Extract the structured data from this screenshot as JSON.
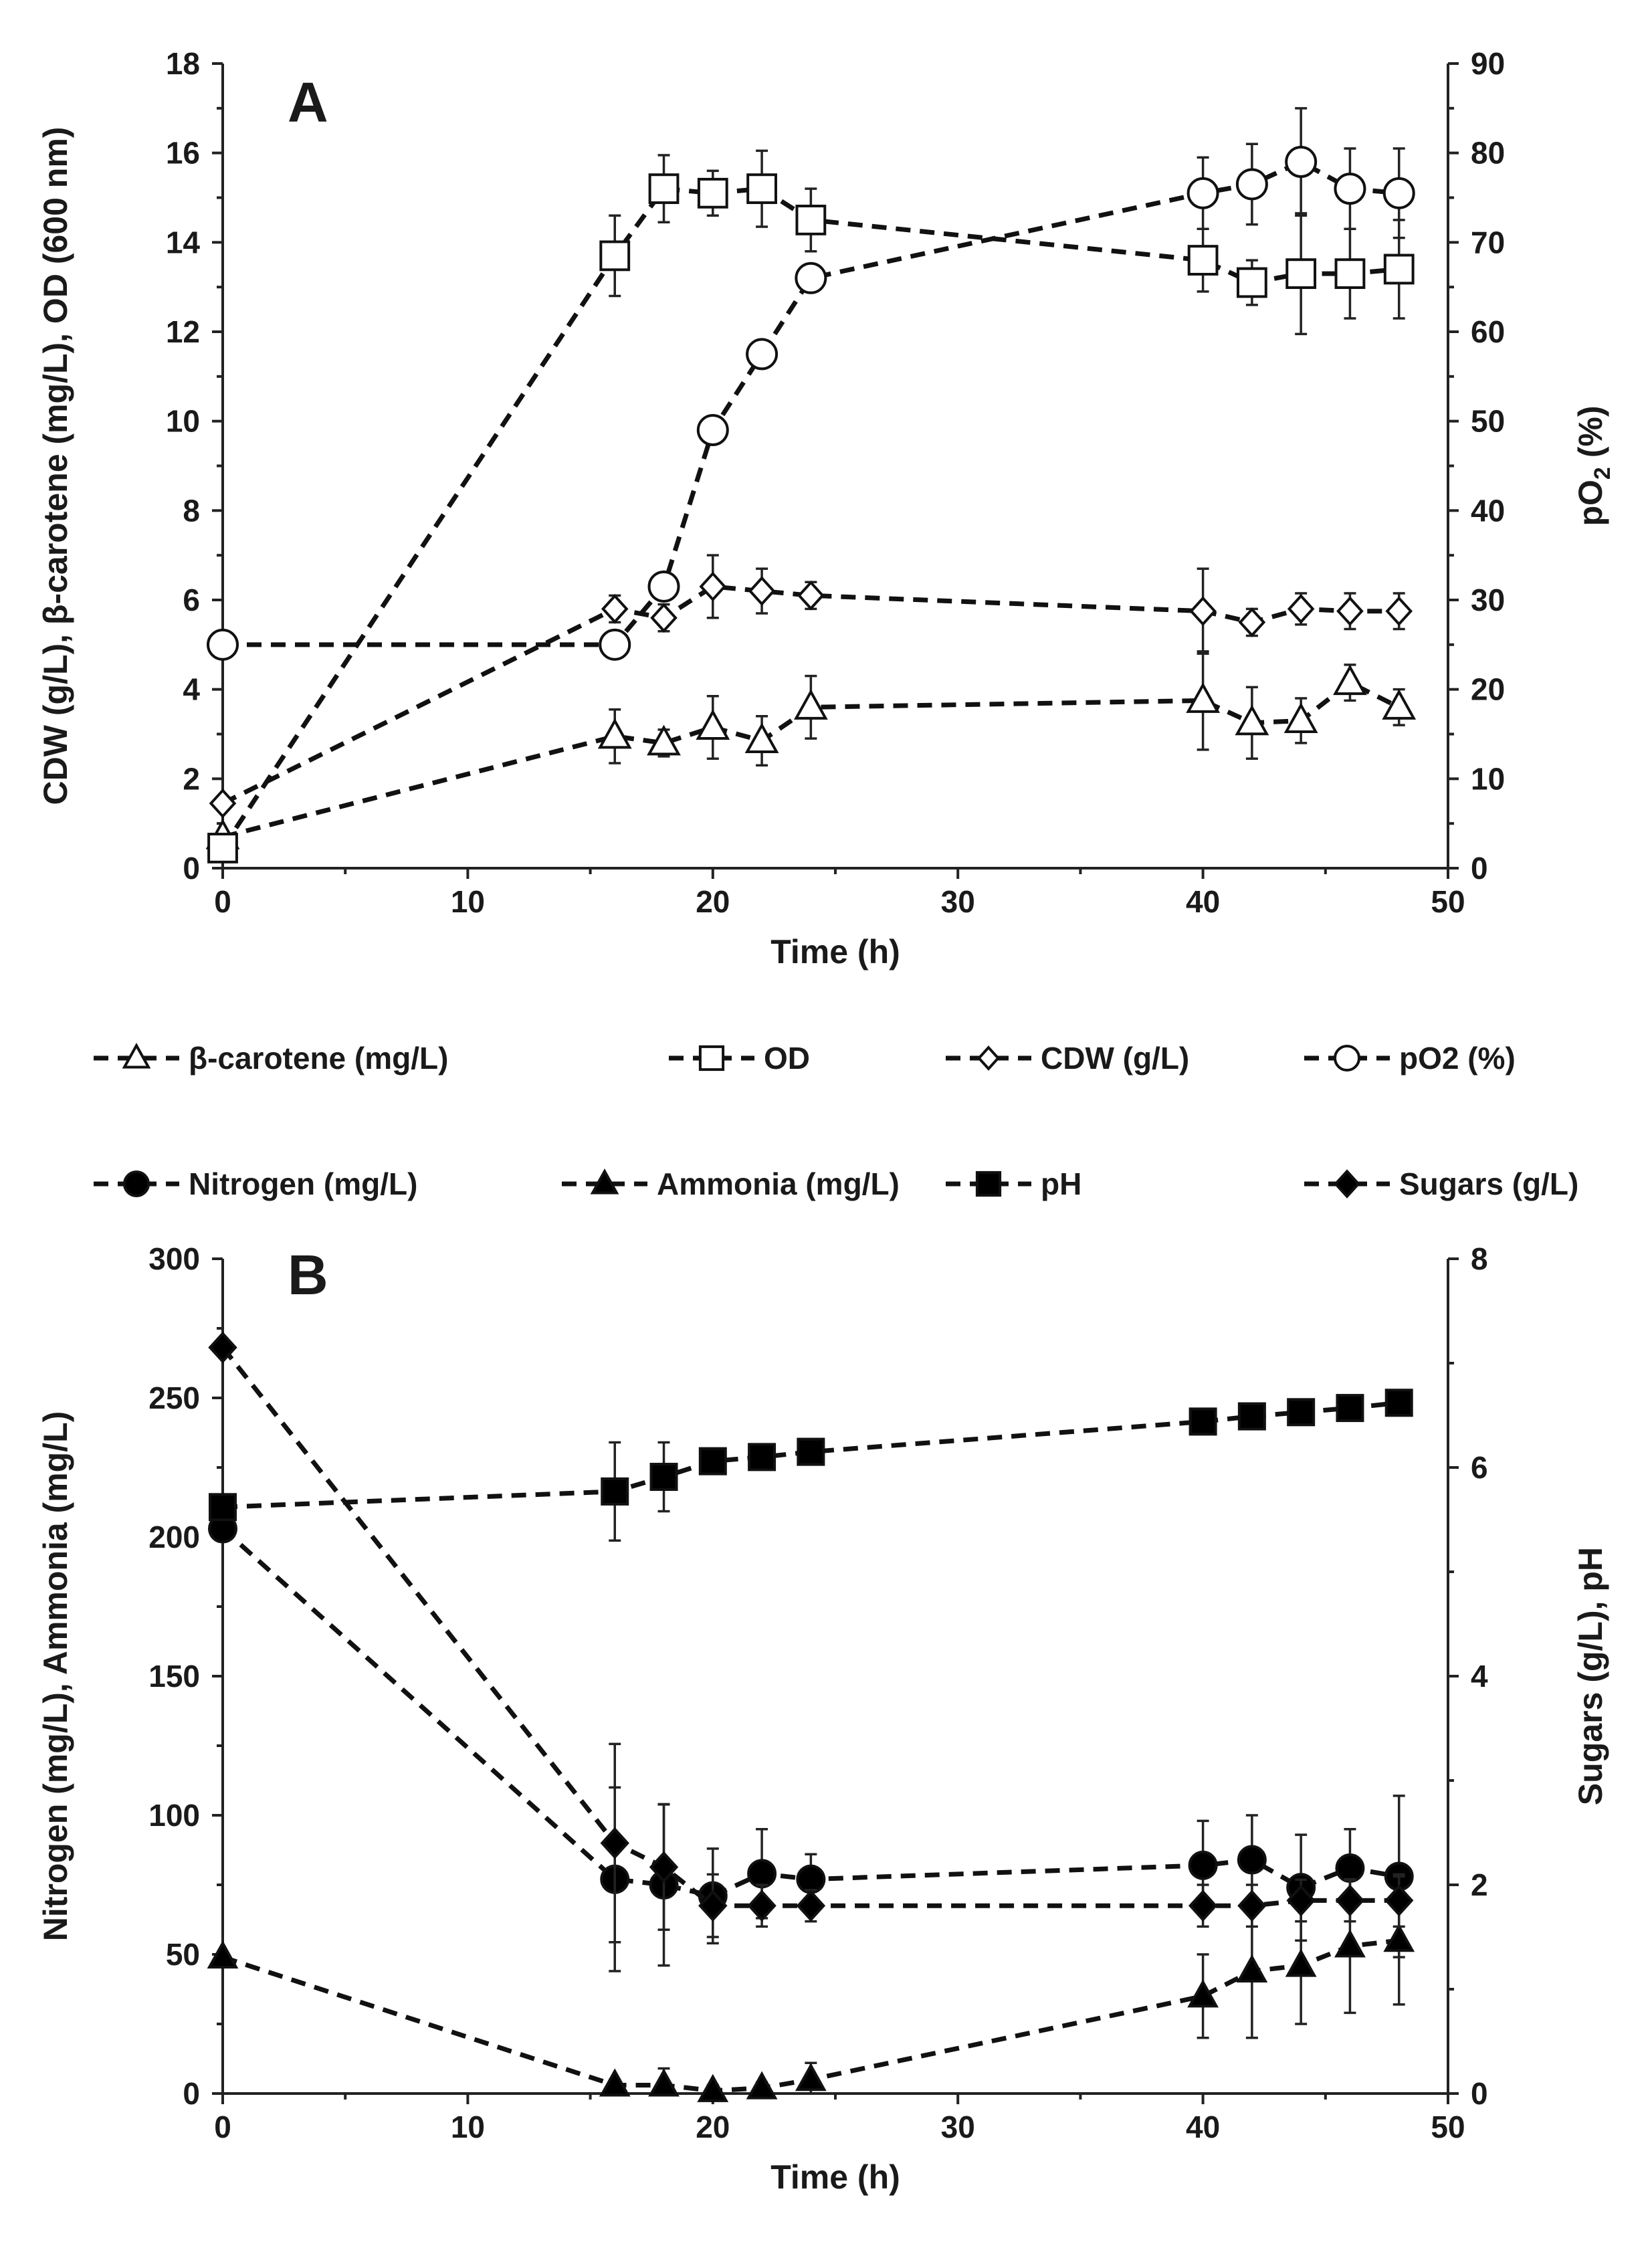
{
  "chart_data": [
    {
      "panel": "A",
      "type": "line",
      "xlabel": "Time (h)",
      "xlim": [
        0,
        50
      ],
      "xticks": [
        0,
        10,
        20,
        30,
        40,
        50
      ],
      "ylabel_left": "CDW (g/L), β-carotene (mg/L), OD (600 nm)",
      "ylim_left": [
        0,
        18
      ],
      "yticks_left": [
        0,
        2,
        4,
        6,
        8,
        10,
        12,
        14,
        16,
        18
      ],
      "ylabel_right_base": "pO",
      "ylabel_right_sub": "2",
      "ylabel_right_suffix": " (%)",
      "ylim_right": [
        0,
        90
      ],
      "yticks_right": [
        0,
        10,
        20,
        30,
        40,
        50,
        60,
        70,
        80,
        90
      ],
      "series": [
        {
          "name": "β-carotene (mg/L)",
          "axis": "left",
          "marker": "open-triangle",
          "x": [
            0,
            16,
            18,
            20,
            22,
            24,
            40,
            42,
            44,
            46,
            48
          ],
          "y": [
            0.7,
            2.95,
            2.8,
            3.15,
            2.85,
            3.6,
            3.75,
            3.25,
            3.3,
            4.15,
            3.6
          ],
          "err": [
            0,
            0.6,
            0.3,
            0.7,
            0.55,
            0.7,
            1.1,
            0.8,
            0.5,
            0.4,
            0.4
          ],
          "legend_label": "β-carotene (mg/L)"
        },
        {
          "name": "OD",
          "axis": "left",
          "marker": "open-square",
          "x": [
            0,
            16,
            18,
            20,
            22,
            24,
            40,
            42,
            44,
            46,
            48
          ],
          "y": [
            0.45,
            13.7,
            15.2,
            15.1,
            15.2,
            14.5,
            13.6,
            13.1,
            13.3,
            13.3,
            13.4
          ],
          "err": [
            0,
            0.9,
            0.75,
            0.5,
            0.85,
            0.7,
            0.7,
            0.5,
            1.35,
            1.0,
            1.1
          ],
          "legend_label": "OD"
        },
        {
          "name": "CDW (g/L)",
          "axis": "left",
          "marker": "open-diamond",
          "x": [
            0,
            16,
            18,
            20,
            22,
            24,
            40,
            42,
            44,
            46,
            48
          ],
          "y": [
            1.45,
            5.8,
            5.6,
            6.3,
            6.2,
            6.1,
            5.75,
            5.5,
            5.8,
            5.75,
            5.75
          ],
          "err": [
            0,
            0.3,
            0.3,
            0.7,
            0.5,
            0.3,
            0.95,
            0.3,
            0.35,
            0.4,
            0.4
          ],
          "legend_label": "CDW (g/L)"
        },
        {
          "name": "pO2 (%)",
          "axis": "right",
          "marker": "open-circle",
          "x": [
            0,
            16,
            18,
            20,
            22,
            24,
            40,
            42,
            44,
            46,
            48
          ],
          "y": [
            25,
            25,
            31.5,
            49,
            57.5,
            66,
            75.5,
            76.5,
            79,
            76,
            75.5
          ],
          "err": [
            0,
            0,
            0,
            0,
            0,
            0,
            4,
            4.5,
            6,
            4.5,
            5
          ],
          "legend_label": "pO2 (%)"
        }
      ]
    },
    {
      "panel": "B",
      "type": "line",
      "xlabel": "Time (h)",
      "xlim": [
        0,
        50
      ],
      "xticks": [
        0,
        10,
        20,
        30,
        40,
        50
      ],
      "ylabel_left": "Nitrogen (mg/L), Ammonia (mg/L)",
      "ylim_left": [
        0,
        300
      ],
      "yticks_left": [
        0,
        50,
        100,
        150,
        200,
        250,
        300
      ],
      "ylabel_right": "Sugars (g/L), pH",
      "ylim_right": [
        0,
        8
      ],
      "yticks_right": [
        0,
        2,
        4,
        6,
        8
      ],
      "series": [
        {
          "name": "Nitrogen (mg/L)",
          "axis": "left",
          "marker": "filled-circle",
          "x": [
            0,
            16,
            18,
            20,
            22,
            24,
            40,
            42,
            44,
            46,
            48
          ],
          "y": [
            203,
            77,
            75,
            71,
            79,
            77,
            82,
            84,
            74,
            81,
            78
          ],
          "err": [
            0,
            33,
            29,
            17,
            16,
            9,
            16,
            16,
            19,
            14,
            29
          ],
          "legend_label": "Nitrogen (mg/L)"
        },
        {
          "name": "Ammonia (mg/L)",
          "axis": "left",
          "marker": "filled-triangle",
          "x": [
            0,
            16,
            18,
            20,
            22,
            24,
            40,
            42,
            44,
            46,
            48
          ],
          "y": [
            49,
            3,
            3,
            1,
            2,
            5,
            35,
            44,
            46,
            53,
            55
          ],
          "err": [
            0,
            2,
            6,
            2,
            2,
            6,
            15,
            24,
            21,
            24,
            23
          ],
          "legend_label": "Ammonia (mg/L)"
        },
        {
          "name": "pH",
          "axis": "right",
          "marker": "filled-square",
          "x": [
            0,
            16,
            18,
            20,
            22,
            24,
            40,
            42,
            44,
            46,
            48
          ],
          "y": [
            5.62,
            5.77,
            5.91,
            6.06,
            6.1,
            6.15,
            6.44,
            6.49,
            6.53,
            6.57,
            6.62
          ],
          "err": [
            0,
            0.47,
            0.33,
            0.1,
            0.05,
            0.05,
            0.05,
            0.05,
            0.05,
            0.05,
            0.05
          ],
          "legend_label": "pH"
        },
        {
          "name": "Sugars (g/L)",
          "axis": "right",
          "marker": "filled-diamond",
          "x": [
            0,
            16,
            18,
            20,
            22,
            24,
            40,
            42,
            44,
            46,
            48
          ],
          "y": [
            7.15,
            2.4,
            2.17,
            1.8,
            1.8,
            1.8,
            1.8,
            1.8,
            1.85,
            1.85,
            1.85
          ],
          "err": [
            0,
            0.95,
            0.6,
            0.3,
            0.2,
            0.15,
            0.2,
            0.2,
            0.2,
            0.2,
            0.25
          ],
          "legend_label": "Sugars (g/L)"
        }
      ]
    }
  ]
}
